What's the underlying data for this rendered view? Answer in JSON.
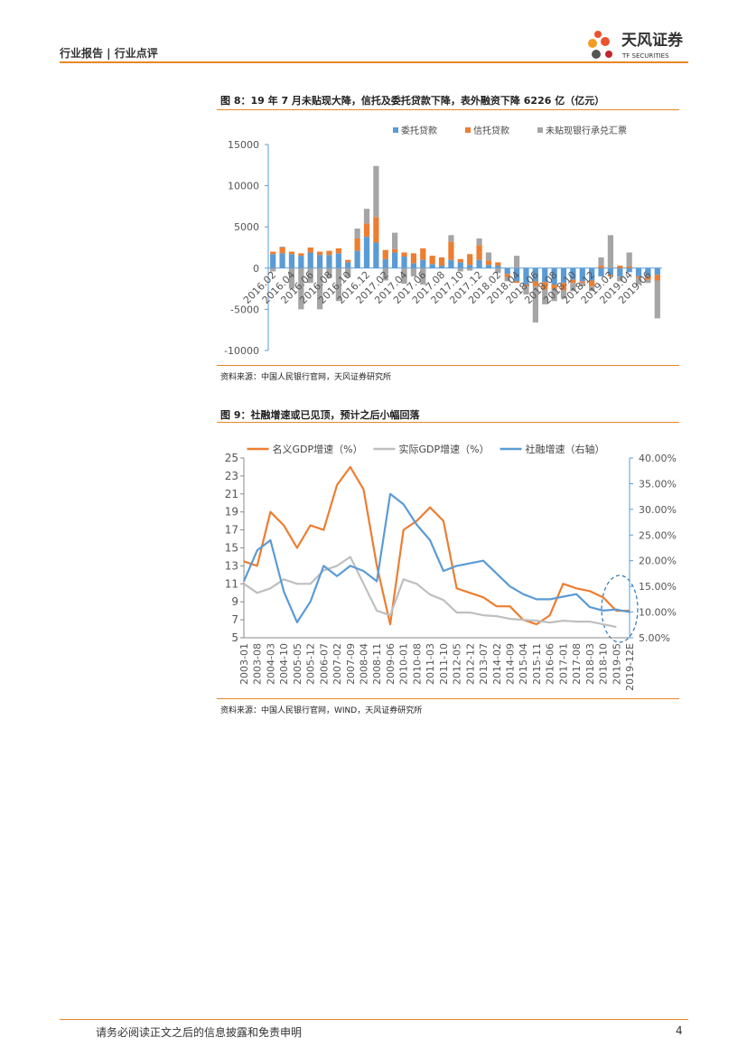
{
  "header": {
    "left": "行业报告 | 行业点评",
    "brand": "天风证券",
    "brand_en": "TF SECURITIES"
  },
  "chart_data": [
    {
      "type": "bar",
      "stacked": true,
      "title": "图 8：19 年 7 月未贴现大降，信托及委托贷款下降，表外融资下降 6226 亿（亿元）",
      "source": "资料来源：中国人民银行官网，天风证券研究所",
      "categories": [
        "2016.02",
        null,
        "2016.04",
        null,
        "2016.06",
        null,
        "2016.08",
        null,
        "2016.10",
        null,
        "2016.12",
        null,
        "2017.02",
        null,
        "2017.04",
        null,
        "2017.06",
        null,
        "2017.08",
        null,
        "2017.10",
        null,
        "2017.12",
        null,
        "2018.02",
        null,
        "2018.04",
        null,
        "2018.06",
        null,
        "2018.08",
        null,
        "2018.10",
        null,
        "2018.12",
        null,
        "2019.02",
        null,
        "2019.04",
        null,
        "2019.06",
        null
      ],
      "series": [
        {
          "name": "委托贷款",
          "color": "#5b9bd5",
          "values": [
            1700,
            1800,
            1700,
            1500,
            1900,
            1600,
            1600,
            1800,
            700,
            2100,
            3800,
            3100,
            1100,
            1900,
            1400,
            600,
            1000,
            500,
            300,
            1000,
            700,
            400,
            1000,
            400,
            300,
            -700,
            -1600,
            -2000,
            -1600,
            -1700,
            -2000,
            -1800,
            -1400,
            -1600,
            -1500,
            -1000,
            -800,
            -1000,
            -500,
            -1000,
            -1000,
            -800
          ]
        },
        {
          "name": "信托贷款",
          "color": "#ed7d31",
          "values": [
            300,
            700,
            300,
            300,
            600,
            400,
            500,
            600,
            300,
            1500,
            1600,
            3100,
            1100,
            400,
            500,
            1200,
            1400,
            1000,
            1000,
            2200,
            400,
            1300,
            1800,
            500,
            400,
            -400,
            -200,
            -200,
            -600,
            -900,
            -500,
            -900,
            -400,
            -200,
            -700,
            300,
            -200,
            300,
            200,
            -200,
            -400,
            -700
          ]
        },
        {
          "name": "未贴现银行承兑汇票",
          "color": "#a5a5a5",
          "values": [
            -400,
            100,
            -2500,
            -5000,
            -1800,
            -5000,
            -1200,
            -4000,
            -1100,
            1200,
            1800,
            6200,
            -1500,
            2000,
            -1900,
            -1000,
            -2000,
            0,
            0,
            800,
            -400,
            -300,
            800,
            1000,
            -600,
            -500,
            1500,
            -1000,
            -4400,
            -1800,
            -1500,
            -1000,
            -1000,
            -400,
            -600,
            1000,
            4000,
            -600,
            1700,
            -800,
            -400,
            -4600
          ]
        }
      ],
      "ylim": [
        -10000,
        15000
      ],
      "yticks": [
        -10000,
        -5000,
        0,
        5000,
        10000,
        15000
      ]
    },
    {
      "type": "line",
      "title": "图 9：社融增速或已见顶，预计之后小幅回落",
      "source": "资料来源：中国人民银行官网，WIND，天风证券研究所",
      "categories": [
        "2003-01",
        "2003-08",
        "2004-03",
        "2004-10",
        "2005-05",
        "2005-12",
        "2006-07",
        "2007-02",
        "2007-09",
        "2008-04",
        "2008-11",
        "2009-06",
        "2010-01",
        "2010-08",
        "2011-03",
        "2011-10",
        "2012-05",
        "2012-12",
        "2013-07",
        "2014-02",
        "2014-09",
        "2015-04",
        "2015-11",
        "2016-06",
        "2017-01",
        "2017-08",
        "2018-03",
        "2018-10",
        "2019-05",
        "2019-12E"
      ],
      "series": [
        {
          "name": "名义GDP增速（%）",
          "color": "#ed7d31",
          "values": [
            13.5,
            13,
            19,
            17.5,
            15,
            17.5,
            17,
            22,
            24,
            21.5,
            13,
            6.5,
            17,
            18,
            19.5,
            18,
            10.5,
            10,
            9.5,
            8.5,
            8.5,
            7,
            6.5,
            7.5,
            11,
            10.5,
            10.2,
            9.5,
            8,
            8
          ]
        },
        {
          "name": "实际GDP增速（%）",
          "color": "#bfbfbf",
          "values": [
            11,
            10,
            10.5,
            11.5,
            11,
            11,
            12.5,
            13,
            14,
            11,
            8,
            7.5,
            11.5,
            11,
            9.8,
            9.2,
            7.8,
            7.8,
            7.5,
            7.4,
            7.1,
            7,
            6.9,
            6.7,
            6.9,
            6.8,
            6.8,
            6.5,
            6.2,
            null
          ]
        },
        {
          "name": "社融增速（右轴）",
          "color": "#5b9bd5",
          "axis": "y2",
          "values": [
            16,
            22,
            24,
            14,
            8,
            12,
            19,
            17,
            19,
            18,
            16,
            33,
            31,
            27,
            24,
            18,
            19,
            19.5,
            20,
            17.5,
            15,
            13.5,
            12.5,
            12.5,
            13,
            13.5,
            11,
            10.3,
            10.5,
            10
          ]
        }
      ],
      "ylim": [
        5,
        25
      ],
      "yticks": [
        5,
        7,
        9,
        11,
        13,
        15,
        17,
        19,
        21,
        23,
        25
      ],
      "y2lim": [
        5,
        40
      ],
      "y2ticks": [
        {
          "value": 5,
          "label": "5.00%"
        },
        {
          "value": 10,
          "label": "10.00%"
        },
        {
          "value": 15,
          "label": "15.00%"
        },
        {
          "value": 20,
          "label": "20.00%"
        },
        {
          "value": 25,
          "label": "25.00%"
        },
        {
          "value": 30,
          "label": "30.00%"
        },
        {
          "value": 35,
          "label": "35.00%"
        },
        {
          "value": 40,
          "label": "40.00%"
        }
      ]
    }
  ],
  "footer": {
    "notice": "请务必阅读正文之后的信息披露和免责申明",
    "page": "4"
  }
}
